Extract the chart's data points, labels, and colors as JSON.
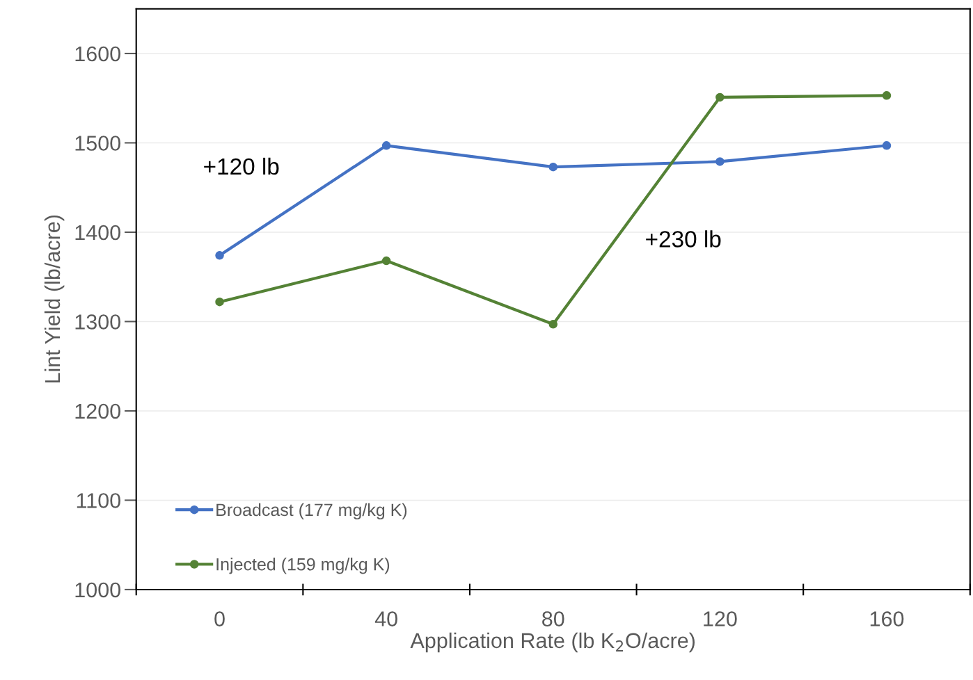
{
  "chart_data": {
    "type": "line",
    "xlabel": "Application Rate (lb K$_{2}$O/acre)",
    "ylabel": "Lint Yield (lb/acre)",
    "categories": [
      "0",
      "40",
      "80",
      "120",
      "160"
    ],
    "series": [
      {
        "name": "Broadcast (177 mg/kg K)",
        "color": "#4472c4",
        "values": [
          1374,
          1497,
          1473,
          1479,
          1497
        ]
      },
      {
        "name": "Injected (159 mg/kg K)",
        "color": "#548235",
        "values": [
          1322,
          1368,
          1297,
          1551,
          1553
        ]
      }
    ],
    "ylim": [
      1000,
      1650
    ],
    "yticks": [
      1000,
      1100,
      1200,
      1300,
      1400,
      1500,
      1600
    ],
    "annotations": [
      "+120 lb",
      "+230 lb"
    ],
    "grid": "y",
    "legend": "bottom left",
    "marker": "circle",
    "line_style": "solid"
  }
}
